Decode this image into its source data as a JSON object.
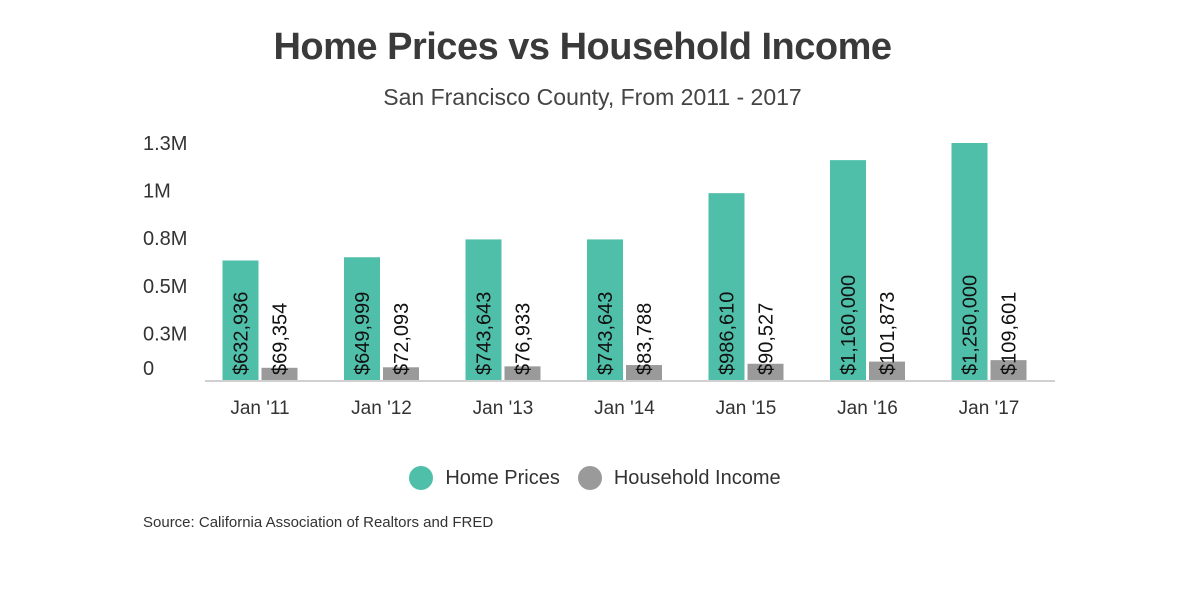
{
  "chart_data": {
    "type": "bar",
    "title": "Home Prices vs Household Income",
    "subtitle": "San Francisco County, From 2011 - 2017",
    "categories": [
      "Jan '11",
      "Jan '12",
      "Jan '13",
      "Jan '14",
      "Jan '15",
      "Jan '16",
      "Jan '17"
    ],
    "series": [
      {
        "name": "Home Prices",
        "color": "#4fbfaa",
        "values": [
          632936,
          649999,
          743643,
          743643,
          986610,
          1160000,
          1250000
        ],
        "labels": [
          "$632,936",
          "$649,999",
          "$743,643",
          "$743,643",
          "$986,610",
          "$1,160,000",
          "$1,250,000"
        ]
      },
      {
        "name": "Household Income",
        "color": "#9a9a9a",
        "values": [
          69354,
          72093,
          76933,
          83788,
          90527,
          101873,
          109601
        ],
        "labels": [
          "$69,354",
          "$72,093",
          "$76,933",
          "$83,788",
          "$90,527",
          "$101,873",
          "$109,601"
        ]
      }
    ],
    "yticks": [
      {
        "value": 0,
        "label": "0"
      },
      {
        "value": 250000,
        "label": "0.3M"
      },
      {
        "value": 500000,
        "label": "0.5M"
      },
      {
        "value": 750000,
        "label": "0.8M"
      },
      {
        "value": 1000000,
        "label": "1M"
      },
      {
        "value": 1250000,
        "label": "1.3M"
      }
    ],
    "ylim": [
      0,
      1250000
    ],
    "grid": false,
    "legend_position": "bottom-center"
  },
  "source": "Source:  California Association of Realtors and FRED"
}
